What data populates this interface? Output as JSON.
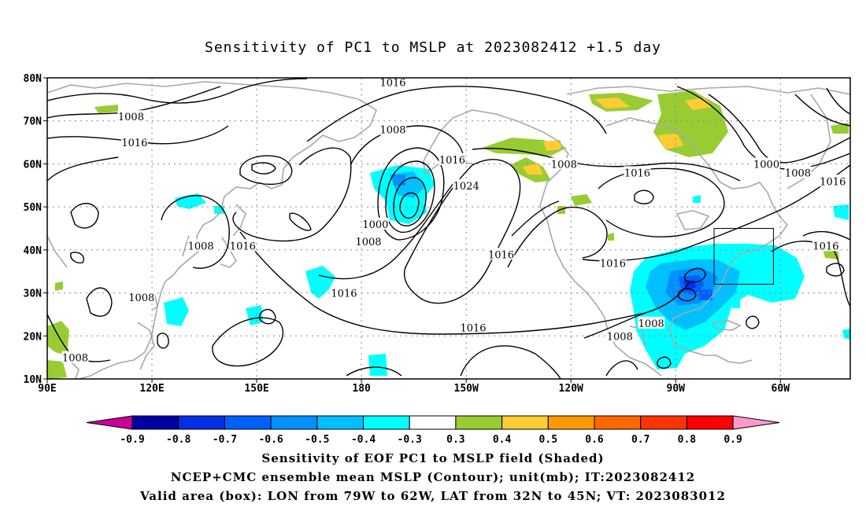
{
  "title": "Sensitivity of PC1 to MSLP at 2023082412 +1.5 day",
  "map": {
    "lat_labels": [
      "80N",
      "70N",
      "60N",
      "50N",
      "40N",
      "30N",
      "20N",
      "10N"
    ],
    "lon_labels": [
      "90E",
      "120E",
      "150E",
      "180",
      "150W",
      "120W",
      "90W",
      "60W"
    ],
    "contour_labels": [
      {
        "text": "1016",
        "lon": -171,
        "lat": 79
      },
      {
        "text": "1008",
        "lon": 114,
        "lat": 71
      },
      {
        "text": "1016",
        "lon": 115,
        "lat": 65
      },
      {
        "text": "1008",
        "lon": -171,
        "lat": 68
      },
      {
        "text": "1016",
        "lon": -154,
        "lat": 61
      },
      {
        "text": "1008",
        "lon": -122,
        "lat": 60
      },
      {
        "text": "1016",
        "lon": -101,
        "lat": 58
      },
      {
        "text": "1000",
        "lon": -64,
        "lat": 60
      },
      {
        "text": "1008",
        "lon": -55,
        "lat": 58
      },
      {
        "text": "1016",
        "lon": -45,
        "lat": 56
      },
      {
        "text": "1024",
        "lon": -150,
        "lat": 55
      },
      {
        "text": "1000",
        "lon": -176,
        "lat": 46
      },
      {
        "text": "1008",
        "lon": -178,
        "lat": 42
      },
      {
        "text": "1008",
        "lon": 134,
        "lat": 41
      },
      {
        "text": "1016",
        "lon": 146,
        "lat": 41
      },
      {
        "text": "1016",
        "lon": -140,
        "lat": 39
      },
      {
        "text": "1016",
        "lon": -108,
        "lat": 37
      },
      {
        "text": "1016",
        "lon": -47,
        "lat": 41
      },
      {
        "text": "1016",
        "lon": 175,
        "lat": 30
      },
      {
        "text": "1008",
        "lon": 117,
        "lat": 29
      },
      {
        "text": "1016",
        "lon": -148,
        "lat": 22
      },
      {
        "text": "1008",
        "lon": -97,
        "lat": 23
      },
      {
        "text": "1008",
        "lon": -106,
        "lat": 20
      },
      {
        "text": "1008",
        "lon": 98,
        "lat": 15
      }
    ],
    "valid_box": {
      "lon_min": -79,
      "lon_max": -62,
      "lat_min": 32,
      "lat_max": 45
    }
  },
  "colorbar": {
    "labels": [
      "-0.9",
      "-0.8",
      "-0.7",
      "-0.6",
      "-0.5",
      "-0.4",
      "-0.3",
      "0.3",
      "0.4",
      "0.5",
      "0.6",
      "0.7",
      "0.8",
      "0.9"
    ],
    "colors": [
      "#0000a0",
      "#0030e6",
      "#0060ff",
      "#0090ff",
      "#00c0ff",
      "#00ffff",
      "#ffffff",
      "#99cc33",
      "#ffcc33",
      "#ff9900",
      "#ff6600",
      "#ff3300",
      "#ff0000"
    ],
    "low_end": "#cc0099",
    "high_end": "#ff99cc"
  },
  "caption": {
    "line1": "Sensitivity of EOF PC1 to MSLP field (Shaded)",
    "line2": "NCEP+CMC ensemble mean MSLP (Contour); unit(mb); IT:2023082412",
    "line3": "Valid area (box): LON from 79W to 62W, LAT from 32N to 45N; VT: 2023083012"
  }
}
